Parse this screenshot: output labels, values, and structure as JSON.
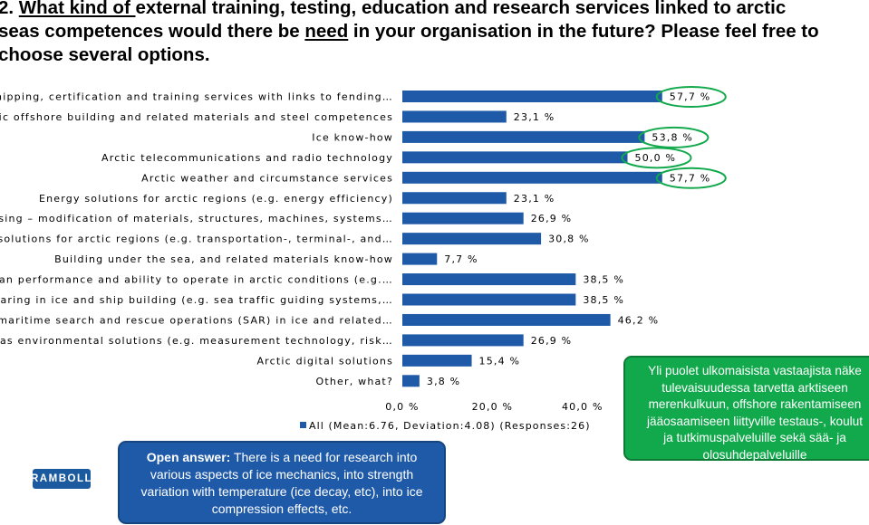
{
  "title": {
    "line1_pre": "2. ",
    "line1_u": "What kind of ",
    "line1_rest": "external training, testing, education and research services linked to arctic",
    "line2_pre": "seas competences would there be ",
    "line2_u": "need",
    "line2_rest": " in your organisation in the future? Please feel free to",
    "line3": "choose several options."
  },
  "chart_data": {
    "type": "bar",
    "orientation": "horizontal",
    "categories": [
      "Arctic shipping, certification and training services with links to fending…",
      "Arctic offshore building and related materials and steel competences",
      "Ice know-how",
      "Arctic telecommunications and radio technology",
      "Arctic weather and circumstance services",
      "Energy solutions for arctic regions (e.g. energy efficiency)",
      "Winterising – modification of materials, structures, machines, systems…",
      "Logistic solutions for arctic regions (e.g. transportation-, terminal-, and…",
      "Building under the sea, and related materials know-how",
      "Human performance and ability to operate in arctic conditions (e.g.…",
      "Seafaring in ice and ship building (e.g. sea traffic guiding systems,…",
      "Arctic maritime search and rescue operations (SAR) in ice and related…",
      "Arctic seas environmental solutions (e.g. measurement technology, risk…",
      "Arctic digital solutions",
      "Other, what?"
    ],
    "values": [
      57.7,
      23.1,
      53.8,
      50.0,
      57.7,
      23.1,
      26.9,
      30.8,
      7.7,
      38.5,
      38.5,
      46.2,
      26.9,
      15.4,
      3.8
    ],
    "value_labels": [
      "57,7 %",
      "23,1 %",
      "53,8 %",
      "50,0 %",
      "57,7 %",
      "23,1 %",
      "26,9 %",
      "30,8 %",
      "7,7 %",
      "38,5 %",
      "38,5 %",
      "46,2 %",
      "26,9 %",
      "15,4 %",
      "3,8 %"
    ],
    "highlighted": [
      0,
      2,
      3,
      4
    ],
    "xlim": [
      0,
      60
    ],
    "ticks": [
      0,
      20,
      40
    ],
    "tick_labels": [
      "0,0 %",
      "20,0 %",
      "40,0 %"
    ],
    "legend": "All (Mean:6.76, Deviation:4.08) (Responses:26)",
    "legend_position": "bottom",
    "bar_color": "#1f5aa8",
    "highlight_color": "#12a94c"
  },
  "logo": {
    "text": "RAMBOLL",
    "color": "#1b5a9e"
  },
  "open_answer": {
    "label": "Open answer:",
    "text": " There is a need for research into various aspects of ice mechanics, into strength variation with temperature (ice decay, etc), into ice compression effects, etc."
  },
  "finnish_note": {
    "lines": [
      "Yli puolet ulkomaisista vastaajista näke",
      "tulevaisuudessa tarvetta arktiseen",
      "merenkulkuun, offshore rakentamiseen",
      "jääosaamiseen liittyville testaus-, koulut",
      "ja tutkimuspalveluille  sekä sää- ja",
      "olosuhdepalveluille"
    ]
  }
}
